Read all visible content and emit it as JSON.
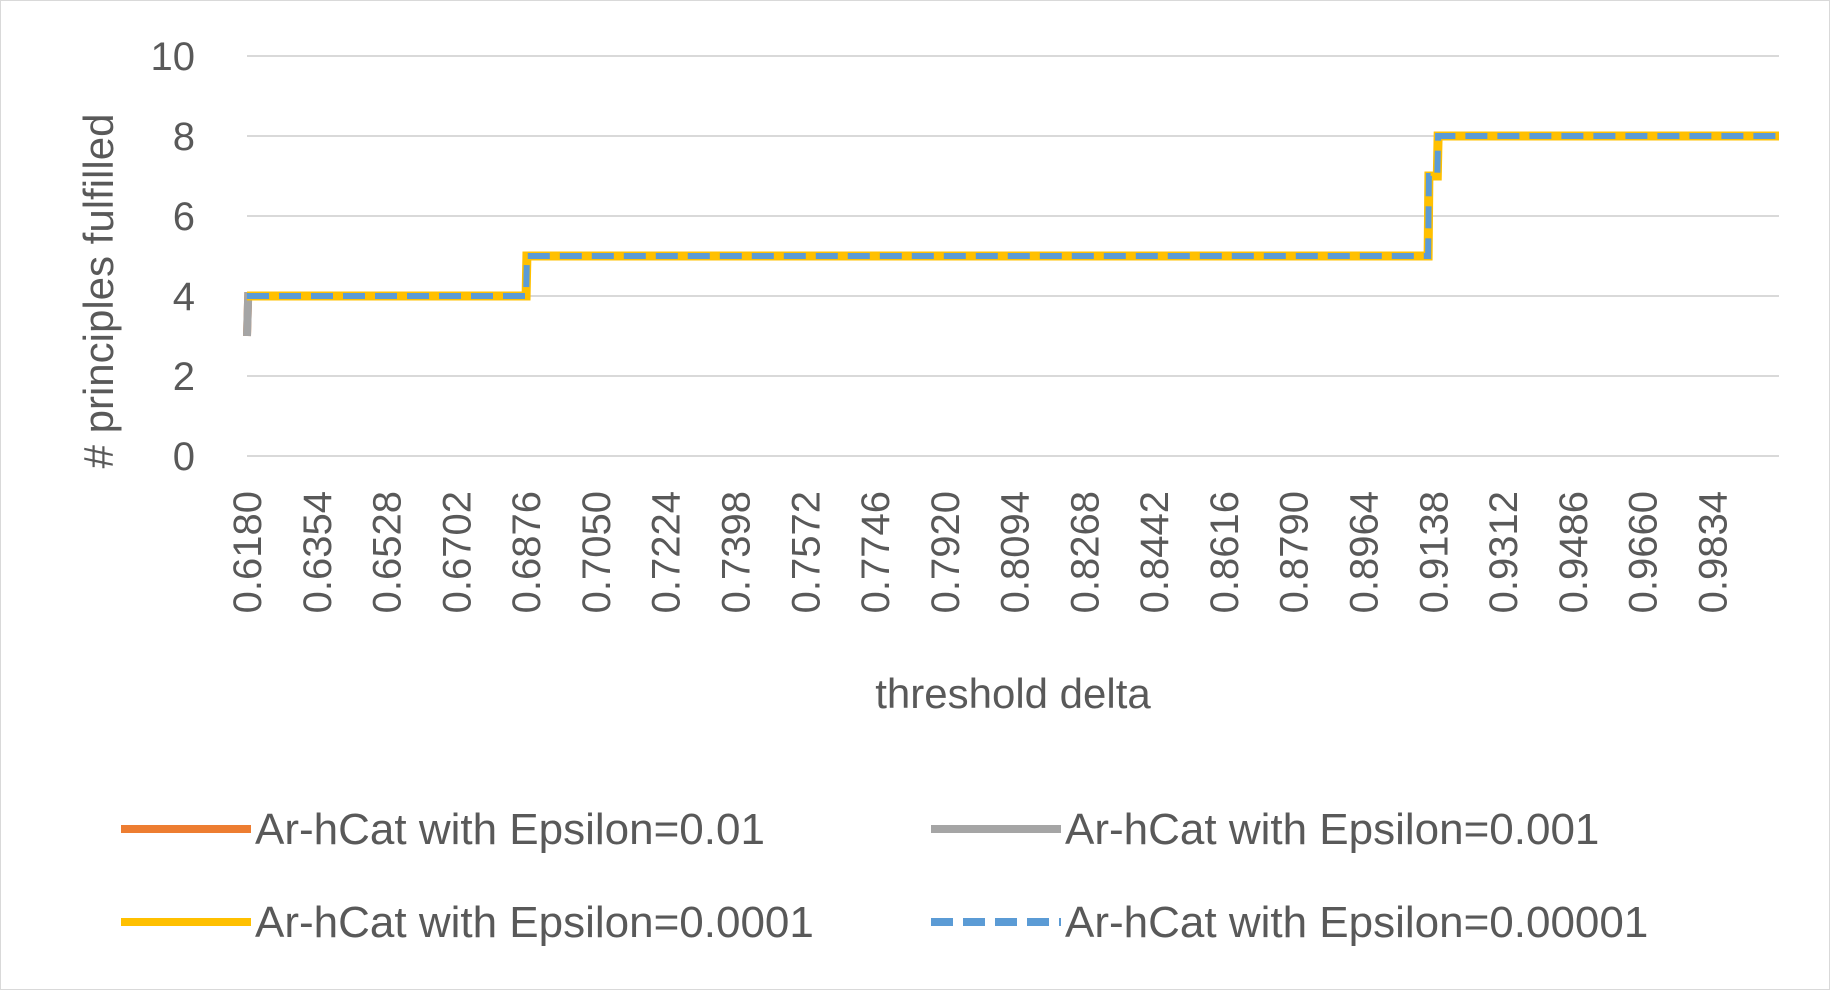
{
  "chart_data": {
    "type": "line",
    "title": "",
    "xlabel": "threshold delta",
    "ylabel": "# principles fulfilled",
    "ylim": [
      0,
      10
    ],
    "yticks": [
      "0",
      "2",
      "4",
      "6",
      "8",
      "10"
    ],
    "xtick_labels": [
      "0.6180",
      "0.6354",
      "0.6528",
      "0.6702",
      "0.6876",
      "0.7050",
      "0.7224",
      "0.7398",
      "0.7572",
      "0.7746",
      "0.7920",
      "0.8094",
      "0.8268",
      "0.8442",
      "0.8616",
      "0.8790",
      "0.8964",
      "0.9138",
      "0.9312",
      "0.9486",
      "0.9660",
      "0.9834"
    ],
    "xlim": [
      0.618,
      1.0
    ],
    "grid": true,
    "legend_position": "bottom",
    "series": [
      {
        "name": "Ar-hCat with Epsilon=0.01",
        "color": "#ED7D31",
        "style": "solid",
        "points": [
          [
            0.618,
            3
          ],
          [
            0.6183,
            4
          ],
          [
            0.6876,
            4
          ],
          [
            0.6878,
            5
          ],
          [
            0.9125,
            5
          ],
          [
            0.9127,
            7
          ],
          [
            0.9148,
            7
          ],
          [
            0.915,
            8
          ],
          [
            1.0,
            8
          ]
        ]
      },
      {
        "name": "Ar-hCat with Epsilon=0.001",
        "color": "#A5A5A5",
        "style": "solid",
        "points": [
          [
            0.618,
            3
          ],
          [
            0.6183,
            4
          ],
          [
            0.6876,
            4
          ],
          [
            0.6878,
            5
          ],
          [
            0.9125,
            5
          ],
          [
            0.9127,
            7
          ],
          [
            0.9148,
            7
          ],
          [
            0.915,
            8
          ],
          [
            1.0,
            8
          ]
        ]
      },
      {
        "name": "Ar-hCat with Epsilon=0.0001",
        "color": "#FFC000",
        "style": "solid",
        "points": [
          [
            0.618,
            4
          ],
          [
            0.6876,
            4
          ],
          [
            0.6878,
            5
          ],
          [
            0.9125,
            5
          ],
          [
            0.9127,
            7
          ],
          [
            0.9148,
            7
          ],
          [
            0.915,
            8
          ],
          [
            1.0,
            8
          ]
        ]
      },
      {
        "name": "Ar-hCat with Epsilon=0.00001",
        "color": "#5B9BD5",
        "style": "dashed",
        "points": [
          [
            0.618,
            4
          ],
          [
            0.6876,
            4
          ],
          [
            0.6878,
            5
          ],
          [
            0.9125,
            5
          ],
          [
            0.9127,
            7
          ],
          [
            0.9148,
            7
          ],
          [
            0.915,
            8
          ],
          [
            1.0,
            8
          ]
        ]
      }
    ]
  }
}
